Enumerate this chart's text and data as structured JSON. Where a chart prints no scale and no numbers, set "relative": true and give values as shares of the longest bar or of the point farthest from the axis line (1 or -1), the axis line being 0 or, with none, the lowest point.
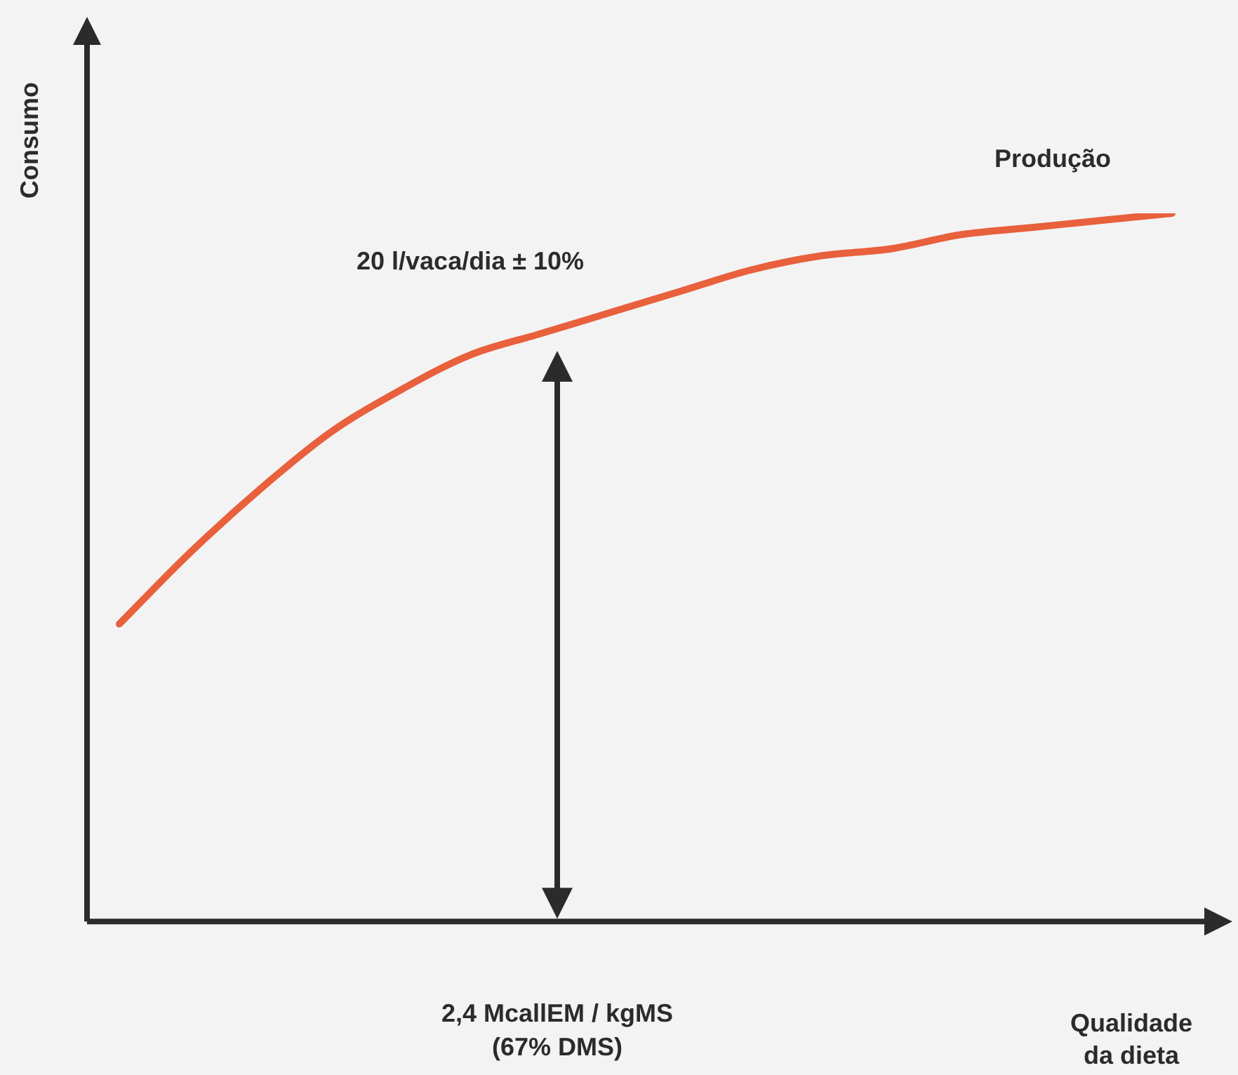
{
  "chart_data": {
    "type": "line",
    "relative": true,
    "ylabel": "Consumo",
    "xlabel": "Qualidade da dieta",
    "legend": false,
    "marker": "none",
    "line_style": "solid",
    "categories": [
      null,
      null,
      null,
      null,
      null,
      null,
      null,
      null,
      null,
      null,
      null,
      null,
      null,
      null,
      null,
      null
    ],
    "series": [
      {
        "name": "Produção",
        "color": "#e8603c",
        "values": [
          0.42,
          0.52,
          0.61,
          0.69,
          0.75,
          0.8,
          0.83,
          0.86,
          0.89,
          0.92,
          0.94,
          0.95,
          0.97,
          0.98,
          0.99,
          1
        ]
      }
    ],
    "annotations": [
      "20 l/vaca/dia ± 10%",
      "2,4 McallEM / kgMS (67% DMS)"
    ]
  }
}
